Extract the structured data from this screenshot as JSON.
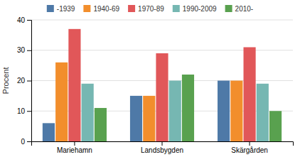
{
  "chart_data": {
    "type": "bar",
    "ylabel": "Procent",
    "categories": [
      "Mariehamn",
      "Landsbygden",
      "Skärgården"
    ],
    "series": [
      {
        "name": "-1939",
        "values": [
          6,
          15,
          20
        ]
      },
      {
        "name": "1940-69",
        "values": [
          26,
          15,
          20
        ]
      },
      {
        "name": "1970-89",
        "values": [
          37,
          29,
          31
        ]
      },
      {
        "name": "1990-2009",
        "values": [
          19,
          20,
          19
        ]
      },
      {
        "name": "2010-",
        "values": [
          11,
          22,
          10
        ]
      }
    ],
    "ylim": [
      0,
      40
    ],
    "yticks": [
      0,
      10,
      20,
      30,
      40
    ],
    "grid": true,
    "legend": "top"
  }
}
